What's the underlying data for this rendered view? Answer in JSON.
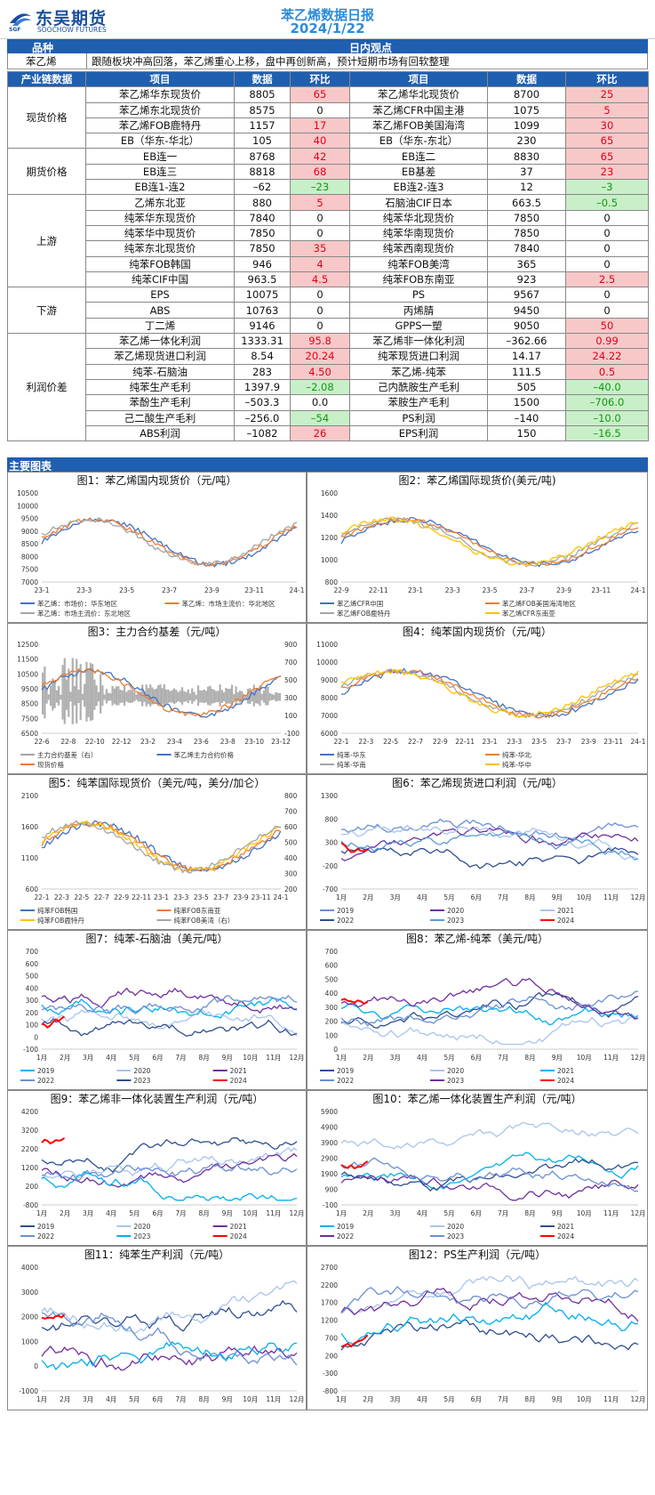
{
  "header": {
    "brand_cn": "东吴期货",
    "brand_en": "SOOCHOW FUTURES",
    "brand_abbr": "SGF",
    "title": "苯乙烯数据日报",
    "date": "2024/1/22"
  },
  "intro": {
    "col1": "品种",
    "col2": "日内观点",
    "product": "苯乙烯",
    "view": "跟随板块冲高回落，苯乙烯重心上移，盘中再创新高，预计短期市场有回软整理"
  },
  "table": {
    "headers": [
      "产业链数据",
      "项目",
      "数据",
      "环比",
      "项目",
      "数据",
      "环比"
    ],
    "groups": [
      {
        "name": "现货价格",
        "rows": [
          [
            "苯乙烯华东现货价",
            "8805",
            "65",
            "苯乙烯华北现货价",
            "8700",
            "25"
          ],
          [
            "苯乙烯东北现货价",
            "8575",
            "0",
            "苯乙烯CFR中国主港",
            "1075",
            "5"
          ],
          [
            "苯乙烯FOB鹿特丹",
            "1157",
            "17",
            "苯乙烯FOB美国海湾",
            "1099",
            "30"
          ],
          [
            "EB（华东-华北）",
            "105",
            "40",
            "EB（华东-东北）",
            "230",
            "65"
          ]
        ]
      },
      {
        "name": "期货价格",
        "rows": [
          [
            "EB连一",
            "8768",
            "42",
            "EB连二",
            "8830",
            "65"
          ],
          [
            "EB连三",
            "8818",
            "68",
            "EB基差",
            "37",
            "23"
          ],
          [
            "EB连1-连2",
            "-62",
            "-23",
            "EB连2-连3",
            "12",
            "-3"
          ]
        ]
      },
      {
        "name": "上游",
        "rows": [
          [
            "乙烯东北亚",
            "880",
            "5",
            "石脑油CIF日本",
            "663.5",
            "-0.5"
          ],
          [
            "纯苯华东现货价",
            "7840",
            "0",
            "纯苯华北现货价",
            "7850",
            "0"
          ],
          [
            "纯苯华中现货价",
            "7850",
            "0",
            "纯苯华南现货价",
            "7850",
            "0"
          ],
          [
            "纯苯东北现货价",
            "7850",
            "35",
            "纯苯西南现货价",
            "7840",
            "0"
          ],
          [
            "纯苯FOB韩国",
            "946",
            "4",
            "纯苯FOB美湾",
            "365",
            "0"
          ],
          [
            "纯苯CIF中国",
            "963.5",
            "4.5",
            "纯苯FOB东南亚",
            "923",
            "2.5"
          ]
        ]
      },
      {
        "name": "下游",
        "rows": [
          [
            "EPS",
            "10075",
            "0",
            "PS",
            "9567",
            "0"
          ],
          [
            "ABS",
            "10763",
            "0",
            "丙烯腈",
            "9450",
            "0"
          ],
          [
            "丁二烯",
            "9146",
            "0",
            "GPPS一塑",
            "9050",
            "50"
          ]
        ]
      },
      {
        "name": "利润价差",
        "rows": [
          [
            "苯乙烯一体化利润",
            "1333.31",
            "95.8",
            "苯乙烯非一体化利润",
            "-362.66",
            "0.99"
          ],
          [
            "苯乙烯现货进口利润",
            "8.54",
            "20.24",
            "纯苯现货进口利润",
            "14.17",
            "24.22"
          ],
          [
            "纯苯-石脑油",
            "283",
            "4.50",
            "苯乙烯-纯苯",
            "111.5",
            "0.5"
          ],
          [
            "纯苯生产毛利",
            "1397.9",
            "-2.08",
            "己内酰胺生产毛利",
            "505",
            "-40.0"
          ],
          [
            "苯酚生产毛利",
            "-503.3",
            "0.0",
            "苯胺生产毛利",
            "1500",
            "-706.0"
          ],
          [
            "己二酸生产毛利",
            "-256.0",
            "-54",
            "PS利润",
            "-140",
            "-10.0"
          ],
          [
            "ABS利润",
            "-1082",
            "26",
            "EPS利润",
            "150",
            "-16.5"
          ]
        ]
      }
    ]
  },
  "charts_bar": "主要图表",
  "charts": [
    {
      "title": "图1：苯乙烯国内现货价（元/吨）",
      "yticks": [
        "10500",
        "10000",
        "9500",
        "9000",
        "8500",
        "8000",
        "7500",
        "7000"
      ],
      "xticks": [
        "23-1",
        "23-3",
        "23-5",
        "23-7",
        "23-9",
        "23-11",
        "24-1"
      ],
      "legend": [
        "苯乙烯：市场价：华东地区",
        "苯乙烯：市场主流价：华北地区",
        "苯乙烯：市场主流价：东北地区"
      ],
      "colors": [
        "#4472c4",
        "#ed7d31",
        "#a5a5a5"
      ]
    },
    {
      "title": "图2：苯乙烯国际现货价(美元/吨)",
      "yticks": [
        "1600",
        "1400",
        "1200",
        "1000",
        "800"
      ],
      "xticks": [
        "22-9",
        "22-11",
        "23-1",
        "23-3",
        "23-5",
        "23-7",
        "23-9",
        "23-11",
        "24-1"
      ],
      "legend": [
        "苯乙烯CFR中国",
        "苯乙烯FOB美国海湾地区",
        "苯乙烯FOB鹿特丹",
        "苯乙烯CFR东南亚"
      ],
      "colors": [
        "#4472c4",
        "#ed7d31",
        "#a5a5a5",
        "#ffc000"
      ]
    },
    {
      "title": "图3：主力合约基差（元/吨）",
      "yticks": [
        "12500",
        "11500",
        "10500",
        "9500",
        "8500",
        "7500",
        "6500"
      ],
      "y2ticks": [
        "900",
        "700",
        "500",
        "300",
        "100",
        "-100"
      ],
      "xticks": [
        "22-6",
        "22-8",
        "22-10",
        "22-12",
        "23-2",
        "23-4",
        "23-6",
        "23-8",
        "23-10",
        "23-12"
      ],
      "legend": [
        "主力合约基差（右）",
        "苯乙烯主力合约价格",
        "现货价格"
      ],
      "colors": [
        "#a5a5a5",
        "#4472c4",
        "#ed7d31"
      ]
    },
    {
      "title": "图4：纯苯国内现货价（元/吨）",
      "yticks": [
        "11000",
        "10000",
        "9000",
        "8000",
        "7000",
        "6000"
      ],
      "xticks": [
        "22-1",
        "22-3",
        "22-5",
        "22-7",
        "22-9",
        "22-11",
        "23-1",
        "23-3",
        "23-5",
        "23-7",
        "23-9",
        "23-11",
        "24-1"
      ],
      "legend": [
        "纯苯-华东",
        "纯苯-华北",
        "纯苯-华南",
        "纯苯-华中"
      ],
      "colors": [
        "#4472c4",
        "#ed7d31",
        "#a5a5a5",
        "#ffc000"
      ]
    },
    {
      "title": "图5：纯苯国际现货价（美元/吨，美分/加仑）",
      "yticks": [
        "2100",
        "1600",
        "1100",
        "600"
      ],
      "y2ticks": [
        "800",
        "700",
        "600",
        "500",
        "400",
        "300",
        "200"
      ],
      "xticks": [
        "22-1",
        "22-3",
        "22-5",
        "22-7",
        "22-9",
        "22-11",
        "23-1",
        "23-3",
        "23-5",
        "23-7",
        "23-9",
        "23-11",
        "24-1"
      ],
      "legend": [
        "纯苯FOB韩国",
        "纯苯FOB东南亚",
        "纯苯FOB鹿特丹",
        "纯苯FOB美湾（右）"
      ],
      "colors": [
        "#4472c4",
        "#ed7d31",
        "#ffc000",
        "#a5a5a5"
      ]
    },
    {
      "title": "图6：苯乙烯现货进口利润（元/吨）",
      "yticks": [
        "1300",
        "800",
        "300",
        "-200",
        "-700"
      ],
      "xticks": [
        "1月",
        "2月",
        "3月",
        "4月",
        "5月",
        "6月",
        "7月",
        "8月",
        "9月",
        "10月",
        "11月",
        "12月"
      ],
      "legend": [
        "2019",
        "2020",
        "2021",
        "2022",
        "2023",
        "2024"
      ],
      "colors": [
        "#6b8fd4",
        "#7030a0",
        "#a9c4eb",
        "#2f4f8f",
        "#5b9bd5",
        "#ff0000"
      ]
    },
    {
      "title": "图7：纯苯-石脑油（美元/吨）",
      "yticks": [
        "700",
        "600",
        "500",
        "400",
        "300",
        "200",
        "100",
        "0",
        "-100"
      ],
      "xticks": [
        "1月",
        "2月",
        "3月",
        "4月",
        "5月",
        "6月",
        "7月",
        "8月",
        "9月",
        "10月",
        "11月",
        "12月"
      ],
      "legend": [
        "2019",
        "2020",
        "2021",
        "2022",
        "2023",
        "2024"
      ],
      "colors": [
        "#00b0f0",
        "#a9c4eb",
        "#7030a0",
        "#6b8fd4",
        "#2f4f8f",
        "#ff0000"
      ]
    },
    {
      "title": "图8：苯乙烯-纯苯（美元/吨）",
      "yticks": [
        "700",
        "600",
        "500",
        "400",
        "300",
        "200",
        "100",
        "0"
      ],
      "xticks": [
        "1月",
        "2月",
        "3月",
        "4月",
        "5月",
        "6月",
        "7月",
        "8月",
        "9月",
        "10月",
        "11月",
        "12月"
      ],
      "legend": [
        "2019",
        "2020",
        "2021",
        "2022",
        "2023",
        "2024"
      ],
      "colors": [
        "#2f4f8f",
        "#a9c4eb",
        "#00b0f0",
        "#6b8fd4",
        "#7030a0",
        "#ff0000"
      ]
    },
    {
      "title": "图9：苯乙烯非一体化装置生产利润（元/吨）",
      "yticks": [
        "4200",
        "3200",
        "2200",
        "1200",
        "200",
        "-800"
      ],
      "xticks": [
        "1月",
        "2月",
        "3月",
        "4月",
        "5月",
        "6月",
        "7月",
        "8月",
        "9月",
        "10月",
        "11月",
        "12月"
      ],
      "legend": [
        "2019",
        "2020",
        "2021",
        "2022",
        "2023",
        "2024"
      ],
      "colors": [
        "#2f4f8f",
        "#a9c4eb",
        "#7030a0",
        "#6b8fd4",
        "#00b0f0",
        "#ff0000"
      ]
    },
    {
      "title": "图10：苯乙烯一体化装置生产利润（元/吨）",
      "yticks": [
        "5900",
        "4900",
        "3900",
        "2900",
        "1900",
        "900",
        "-100"
      ],
      "xticks": [
        "1月",
        "2月",
        "3月",
        "4月",
        "5月",
        "6月",
        "7月",
        "8月",
        "9月",
        "10月",
        "11月",
        "12月"
      ],
      "legend": [
        "2019",
        "2020",
        "2021",
        "2022",
        "2023",
        "2024"
      ],
      "colors": [
        "#00b0f0",
        "#a9c4eb",
        "#2f4f8f",
        "#7030a0",
        "#6b8fd4",
        "#ff0000"
      ]
    },
    {
      "title": "图11：纯苯生产利润（元/吨）",
      "yticks": [
        "4000",
        "3000",
        "2000",
        "1000",
        "0",
        "-1000"
      ],
      "xticks": [
        "1月",
        "2月",
        "3月",
        "4月",
        "5月",
        "6月",
        "7月",
        "8月",
        "9月",
        "10月",
        "11月",
        "12月"
      ],
      "legend": [],
      "colors": [
        "#2f4f8f",
        "#a9c4eb",
        "#7030a0",
        "#6b8fd4",
        "#00b0f0",
        "#ff0000"
      ]
    },
    {
      "title": "图12：PS生产利润（元/吨）",
      "yticks": [
        "2700",
        "2200",
        "1700",
        "1200",
        "700",
        "200",
        "-300",
        "-800"
      ],
      "xticks": [
        "1月",
        "2月",
        "3月",
        "4月",
        "5月",
        "6月",
        "7月",
        "8月",
        "9月",
        "10月",
        "11月",
        "12月"
      ],
      "legend": [],
      "colors": [
        "#2f4f8f",
        "#a9c4eb",
        "#7030a0",
        "#6b8fd4",
        "#00b0f0",
        "#ff0000"
      ]
    }
  ]
}
